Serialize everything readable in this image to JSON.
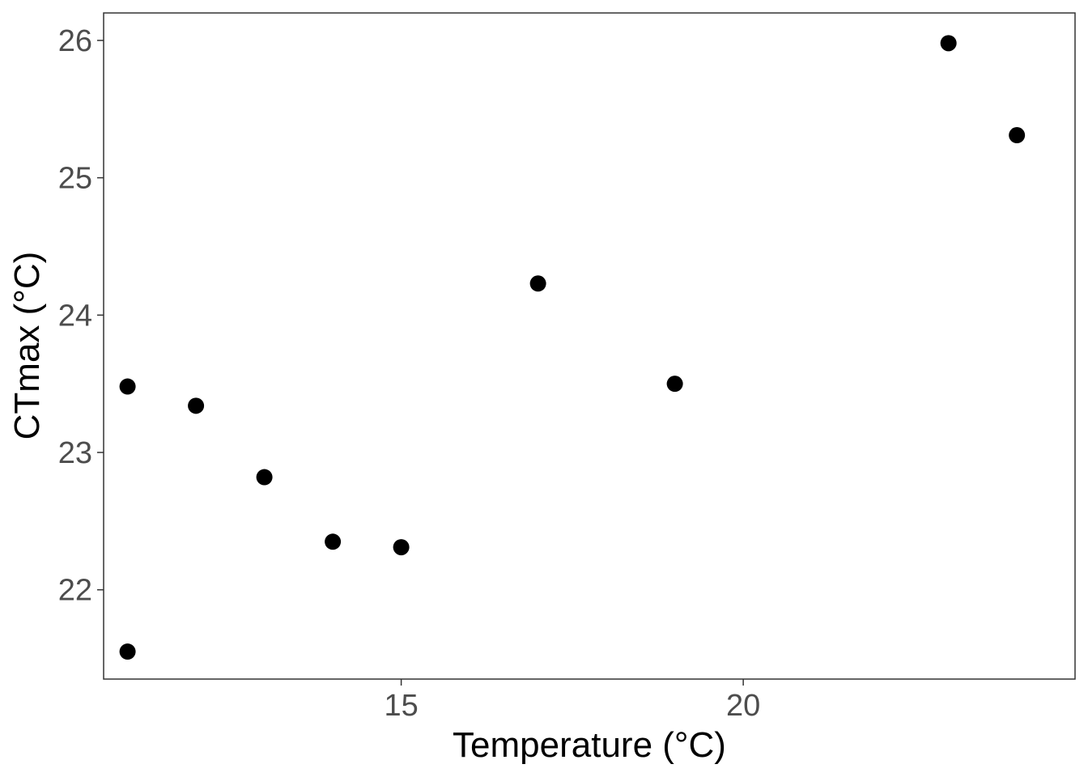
{
  "chart_data": {
    "type": "scatter",
    "title": "",
    "xlabel": "Temperature (°C)",
    "ylabel": "CTmax (°C)",
    "xlim": [
      10.65,
      24.85
    ],
    "ylim": [
      21.35,
      26.2
    ],
    "x_ticks": [
      15,
      20
    ],
    "y_ticks": [
      22,
      23,
      24,
      25,
      26
    ],
    "grid": false,
    "legend": null,
    "point_color": "#000000",
    "points": [
      {
        "x": 11,
        "y": 21.55
      },
      {
        "x": 11,
        "y": 23.48
      },
      {
        "x": 12,
        "y": 23.34
      },
      {
        "x": 13,
        "y": 22.82
      },
      {
        "x": 14,
        "y": 22.35
      },
      {
        "x": 15,
        "y": 22.31
      },
      {
        "x": 17,
        "y": 24.23
      },
      {
        "x": 19,
        "y": 23.5
      },
      {
        "x": 23,
        "y": 25.98
      },
      {
        "x": 24,
        "y": 25.31
      }
    ]
  }
}
